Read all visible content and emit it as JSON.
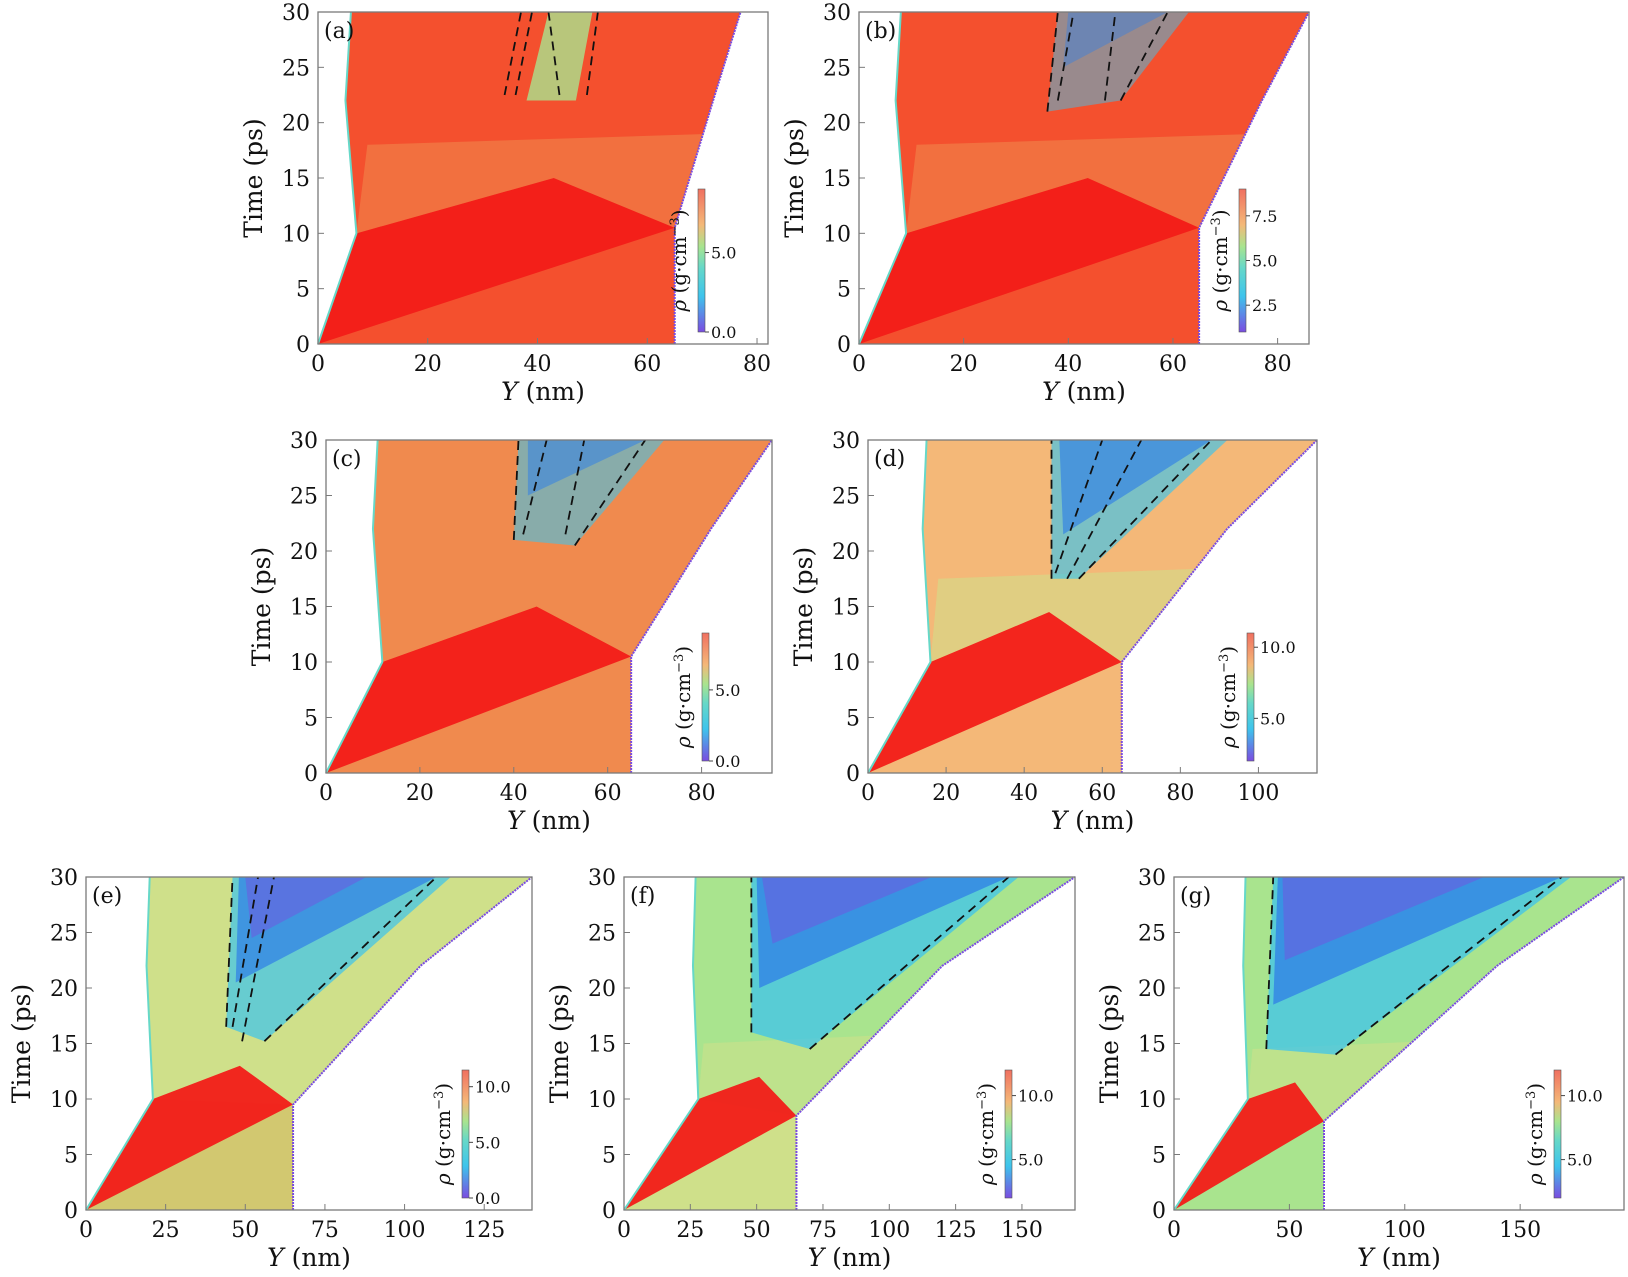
{
  "palette": {
    "red": "#f21c18",
    "orange_red": "#f4502e",
    "orange": "#f08a4e",
    "peach": "#f4b878",
    "yellow_green": "#cfe08a",
    "green": "#a9e48e",
    "teal": "#66d8c8",
    "cyan": "#3ec4ec",
    "blue": "#2f7fe6",
    "violet": "#7a4ce0",
    "olive": "#d2c870",
    "axis": "#7a7a7a"
  },
  "chart_data": [
    {
      "panel": "(a)",
      "type": "heatmap",
      "xlabel_italic": "Y",
      "xlabel_unit": " (nm)",
      "ylabel": "Time (ps)",
      "xlim": [
        0,
        82
      ],
      "ylim": [
        0,
        30
      ],
      "xticks": [
        0,
        20,
        40,
        60,
        80
      ],
      "yticks": [
        0,
        5,
        10,
        15,
        20,
        25,
        30
      ],
      "colorbar": {
        "label_italic": "ρ",
        "label_unit": " (g·cm",
        "label_exp": "−3",
        "label_close": ")",
        "ticks": [
          "0.0",
          "5.0"
        ],
        "range": [
          0,
          9
        ]
      },
      "boundary": {
        "left": [
          [
            0,
            0
          ],
          [
            7,
            10
          ],
          [
            5,
            22
          ],
          [
            6,
            30
          ]
        ],
        "right": [
          [
            65,
            0
          ],
          [
            65,
            10.5
          ],
          [
            72,
            22
          ],
          [
            77,
            30
          ]
        ]
      },
      "dashed": [
        [
          [
            34,
            22.5
          ],
          [
            37,
            30
          ]
        ],
        [
          [
            36,
            22.5
          ],
          [
            39,
            30
          ]
        ],
        [
          [
            44,
            22.5
          ],
          [
            42,
            30
          ]
        ],
        [
          [
            49,
            22.5
          ],
          [
            51,
            30
          ]
        ]
      ]
    },
    {
      "panel": "(b)",
      "type": "heatmap",
      "xlabel_italic": "Y",
      "xlabel_unit": " (nm)",
      "ylabel": "Time (ps)",
      "xlim": [
        0,
        86
      ],
      "ylim": [
        0,
        30
      ],
      "xticks": [
        0,
        20,
        40,
        60,
        80
      ],
      "yticks": [
        0,
        5,
        10,
        15,
        20,
        25,
        30
      ],
      "colorbar": {
        "label_italic": "ρ",
        "label_unit": " (g·cm",
        "label_exp": "−3",
        "label_close": ")",
        "ticks": [
          "2.5",
          "5.0",
          "7.5"
        ],
        "range": [
          1,
          9
        ]
      },
      "boundary": {
        "left": [
          [
            0,
            0
          ],
          [
            9,
            10
          ],
          [
            7,
            22
          ],
          [
            8,
            30
          ]
        ],
        "right": [
          [
            65,
            0
          ],
          [
            65,
            10.5
          ],
          [
            77,
            22
          ],
          [
            86,
            30
          ]
        ]
      },
      "dashed": [
        [
          [
            36,
            21
          ],
          [
            38,
            30
          ]
        ],
        [
          [
            38,
            22
          ],
          [
            41,
            30
          ]
        ],
        [
          [
            47,
            22
          ],
          [
            49,
            30
          ]
        ],
        [
          [
            50,
            22
          ],
          [
            59,
            30
          ]
        ]
      ]
    },
    {
      "panel": "(c)",
      "type": "heatmap",
      "xlabel_italic": "Y",
      "xlabel_unit": " (nm)",
      "ylabel": "Time (ps)",
      "xlim": [
        0,
        95
      ],
      "ylim": [
        0,
        30
      ],
      "xticks": [
        0,
        20,
        40,
        60,
        80
      ],
      "yticks": [
        0,
        5,
        10,
        15,
        20,
        25,
        30
      ],
      "colorbar": {
        "label_italic": "ρ",
        "label_unit": " (g·cm",
        "label_exp": "−3",
        "label_close": ")",
        "ticks": [
          "0.0",
          "5.0"
        ],
        "range": [
          0,
          9
        ]
      },
      "boundary": {
        "left": [
          [
            0,
            0
          ],
          [
            12,
            10
          ],
          [
            10,
            22
          ],
          [
            11,
            30
          ]
        ],
        "right": [
          [
            65,
            0
          ],
          [
            65,
            10.5
          ],
          [
            82,
            22
          ],
          [
            95,
            30
          ]
        ]
      },
      "dashed": [
        [
          [
            40,
            21
          ],
          [
            41,
            30
          ]
        ],
        [
          [
            42,
            21.5
          ],
          [
            47,
            30
          ]
        ],
        [
          [
            51,
            21.5
          ],
          [
            55,
            30
          ]
        ],
        [
          [
            53,
            20.5
          ],
          [
            68,
            30
          ]
        ]
      ]
    },
    {
      "panel": "(d)",
      "type": "heatmap",
      "xlabel_italic": "Y",
      "xlabel_unit": " (nm)",
      "ylabel": "Time (ps)",
      "xlim": [
        0,
        115
      ],
      "ylim": [
        0,
        30
      ],
      "xticks": [
        0,
        20,
        40,
        60,
        80,
        100
      ],
      "yticks": [
        0,
        5,
        10,
        15,
        20,
        25,
        30
      ],
      "colorbar": {
        "label_italic": "ρ",
        "label_unit": " (g·cm",
        "label_exp": "−3",
        "label_close": ")",
        "ticks": [
          "5.0",
          "10.0"
        ],
        "range": [
          2,
          11
        ]
      },
      "boundary": {
        "left": [
          [
            0,
            0
          ],
          [
            16,
            10
          ],
          [
            14,
            22
          ],
          [
            15,
            30
          ]
        ],
        "right": [
          [
            65,
            0
          ],
          [
            65,
            10
          ],
          [
            92,
            22
          ],
          [
            115,
            30
          ]
        ]
      },
      "dashed": [
        [
          [
            47,
            17.5
          ],
          [
            47,
            30
          ]
        ],
        [
          [
            48,
            18
          ],
          [
            60,
            30
          ]
        ],
        [
          [
            51,
            17.5
          ],
          [
            70,
            30
          ]
        ],
        [
          [
            54,
            17.5
          ],
          [
            88,
            30
          ]
        ]
      ]
    },
    {
      "panel": "(e)",
      "type": "heatmap",
      "xlabel_italic": "Y",
      "xlabel_unit": " (nm)",
      "ylabel": "Time (ps)",
      "xlim": [
        0,
        140
      ],
      "ylim": [
        0,
        30
      ],
      "xticks": [
        0,
        25,
        50,
        75,
        100,
        125
      ],
      "yticks": [
        0,
        5,
        10,
        15,
        20,
        25,
        30
      ],
      "colorbar": {
        "label_italic": "ρ",
        "label_unit": " (g·cm",
        "label_exp": "−3",
        "label_close": ")",
        "ticks": [
          "0.0",
          "5.0",
          "10.0"
        ],
        "range": [
          0,
          11.5
        ]
      },
      "boundary": {
        "left": [
          [
            0,
            0
          ],
          [
            21,
            10
          ],
          [
            19,
            22
          ],
          [
            20,
            30
          ]
        ],
        "right": [
          [
            65,
            0
          ],
          [
            65,
            9.5
          ],
          [
            105,
            22
          ],
          [
            140,
            30
          ]
        ]
      },
      "dashed": [
        [
          [
            44,
            16.5
          ],
          [
            46,
            30
          ]
        ],
        [
          [
            46,
            16.5
          ],
          [
            54,
            30
          ]
        ],
        [
          [
            49,
            15.2
          ],
          [
            59,
            30
          ]
        ],
        [
          [
            56,
            15.2
          ],
          [
            110,
            30
          ]
        ]
      ]
    },
    {
      "panel": "(f)",
      "type": "heatmap",
      "xlabel_italic": "Y",
      "xlabel_unit": " (nm)",
      "ylabel": "Time (ps)",
      "xlim": [
        0,
        170
      ],
      "ylim": [
        0,
        30
      ],
      "xticks": [
        0,
        25,
        50,
        75,
        100,
        125,
        150
      ],
      "yticks": [
        0,
        5,
        10,
        15,
        20,
        25,
        30
      ],
      "colorbar": {
        "label_italic": "ρ",
        "label_unit": " (g·cm",
        "label_exp": "−3",
        "label_close": ")",
        "ticks": [
          "5.0",
          "10.0"
        ],
        "range": [
          2,
          12
        ]
      },
      "boundary": {
        "left": [
          [
            0,
            0
          ],
          [
            28,
            10
          ],
          [
            26,
            22
          ],
          [
            27,
            30
          ]
        ],
        "right": [
          [
            65,
            0
          ],
          [
            65,
            8.5
          ],
          [
            120,
            22
          ],
          [
            170,
            30
          ]
        ]
      },
      "dashed": [
        [
          [
            48,
            16
          ],
          [
            48,
            30
          ]
        ],
        [
          [
            70,
            14.5
          ],
          [
            145,
            30
          ]
        ]
      ]
    },
    {
      "panel": "(g)",
      "type": "heatmap",
      "xlabel_italic": "Y",
      "xlabel_unit": " (nm)",
      "ylabel": "Time (ps)",
      "xlim": [
        0,
        195
      ],
      "ylim": [
        0,
        30
      ],
      "xticks": [
        0,
        50,
        100,
        150
      ],
      "yticks": [
        0,
        5,
        10,
        15,
        20,
        25,
        30
      ],
      "colorbar": {
        "label_italic": "ρ",
        "label_unit": " (g·cm",
        "label_exp": "−3",
        "label_close": ")",
        "ticks": [
          "5.0",
          "10.0"
        ],
        "range": [
          2,
          12
        ]
      },
      "boundary": {
        "left": [
          [
            0,
            0
          ],
          [
            32,
            10
          ],
          [
            30,
            22
          ],
          [
            31,
            30
          ]
        ],
        "right": [
          [
            65,
            0
          ],
          [
            65,
            8
          ],
          [
            140,
            22
          ],
          [
            195,
            30
          ]
        ]
      },
      "dashed": [
        [
          [
            40,
            14.5
          ],
          [
            43,
            30
          ]
        ],
        [
          [
            70,
            14
          ],
          [
            168,
            30
          ]
        ]
      ]
    }
  ]
}
